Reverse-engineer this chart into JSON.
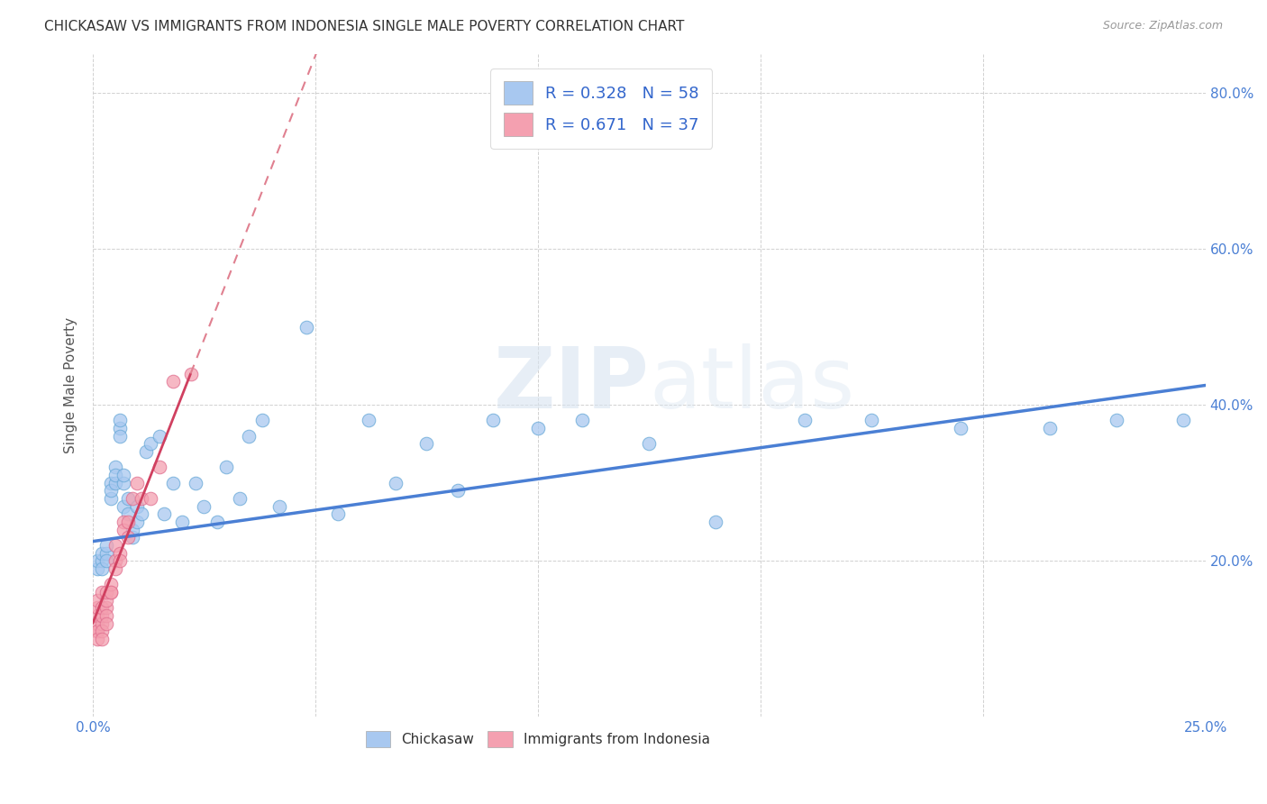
{
  "title": "CHICKASAW VS IMMIGRANTS FROM INDONESIA SINGLE MALE POVERTY CORRELATION CHART",
  "source": "Source: ZipAtlas.com",
  "ylabel": "Single Male Poverty",
  "x_min": 0.0,
  "x_max": 0.25,
  "y_min": 0.0,
  "y_max": 0.85,
  "x_ticks": [
    0.0,
    0.05,
    0.1,
    0.15,
    0.2,
    0.25
  ],
  "x_tick_labels": [
    "0.0%",
    "",
    "",
    "",
    "",
    "25.0%"
  ],
  "y_ticks": [
    0.0,
    0.2,
    0.4,
    0.6,
    0.8
  ],
  "y_tick_labels": [
    "",
    "20.0%",
    "40.0%",
    "60.0%",
    "80.0%"
  ],
  "color_blue": "#a8c8f0",
  "color_pink": "#f4a0b0",
  "color_blue_edge": "#6aaad8",
  "color_pink_edge": "#e07090",
  "line_blue": "#4a7fd4",
  "line_pink_dash": "#e08090",
  "line_pink_solid": "#d04060",
  "watermark_color": "#d8e4f0",
  "chickasaw_x": [
    0.001,
    0.001,
    0.002,
    0.002,
    0.002,
    0.003,
    0.003,
    0.003,
    0.004,
    0.004,
    0.004,
    0.005,
    0.005,
    0.005,
    0.006,
    0.006,
    0.006,
    0.007,
    0.007,
    0.007,
    0.008,
    0.008,
    0.009,
    0.009,
    0.01,
    0.01,
    0.011,
    0.012,
    0.013,
    0.015,
    0.016,
    0.018,
    0.02,
    0.023,
    0.025,
    0.028,
    0.03,
    0.033,
    0.035,
    0.038,
    0.042,
    0.048,
    0.055,
    0.062,
    0.068,
    0.075,
    0.082,
    0.09,
    0.1,
    0.11,
    0.125,
    0.14,
    0.16,
    0.175,
    0.195,
    0.215,
    0.23,
    0.245
  ],
  "chickasaw_y": [
    0.19,
    0.2,
    0.2,
    0.21,
    0.19,
    0.21,
    0.22,
    0.2,
    0.28,
    0.3,
    0.29,
    0.3,
    0.32,
    0.31,
    0.37,
    0.38,
    0.36,
    0.3,
    0.31,
    0.27,
    0.26,
    0.28,
    0.23,
    0.24,
    0.25,
    0.27,
    0.26,
    0.34,
    0.35,
    0.36,
    0.26,
    0.3,
    0.25,
    0.3,
    0.27,
    0.25,
    0.32,
    0.28,
    0.36,
    0.38,
    0.27,
    0.5,
    0.26,
    0.38,
    0.3,
    0.35,
    0.29,
    0.38,
    0.37,
    0.38,
    0.35,
    0.25,
    0.38,
    0.38,
    0.37,
    0.37,
    0.38,
    0.38
  ],
  "indonesia_x": [
    0.001,
    0.001,
    0.001,
    0.001,
    0.001,
    0.001,
    0.001,
    0.002,
    0.002,
    0.002,
    0.002,
    0.002,
    0.002,
    0.003,
    0.003,
    0.003,
    0.003,
    0.003,
    0.004,
    0.004,
    0.004,
    0.005,
    0.005,
    0.005,
    0.006,
    0.006,
    0.007,
    0.007,
    0.008,
    0.008,
    0.009,
    0.01,
    0.011,
    0.013,
    0.015,
    0.018,
    0.022
  ],
  "indonesia_y": [
    0.11,
    0.12,
    0.13,
    0.14,
    0.15,
    0.11,
    0.1,
    0.12,
    0.13,
    0.14,
    0.16,
    0.11,
    0.1,
    0.14,
    0.15,
    0.16,
    0.13,
    0.12,
    0.16,
    0.17,
    0.16,
    0.22,
    0.2,
    0.19,
    0.21,
    0.2,
    0.25,
    0.24,
    0.25,
    0.23,
    0.28,
    0.3,
    0.28,
    0.28,
    0.32,
    0.43,
    0.44
  ],
  "blue_line_x": [
    0.0,
    0.25
  ],
  "blue_line_y": [
    0.225,
    0.425
  ],
  "pink_line_x": [
    0.0,
    0.022
  ],
  "pink_line_y": [
    0.12,
    0.44
  ]
}
